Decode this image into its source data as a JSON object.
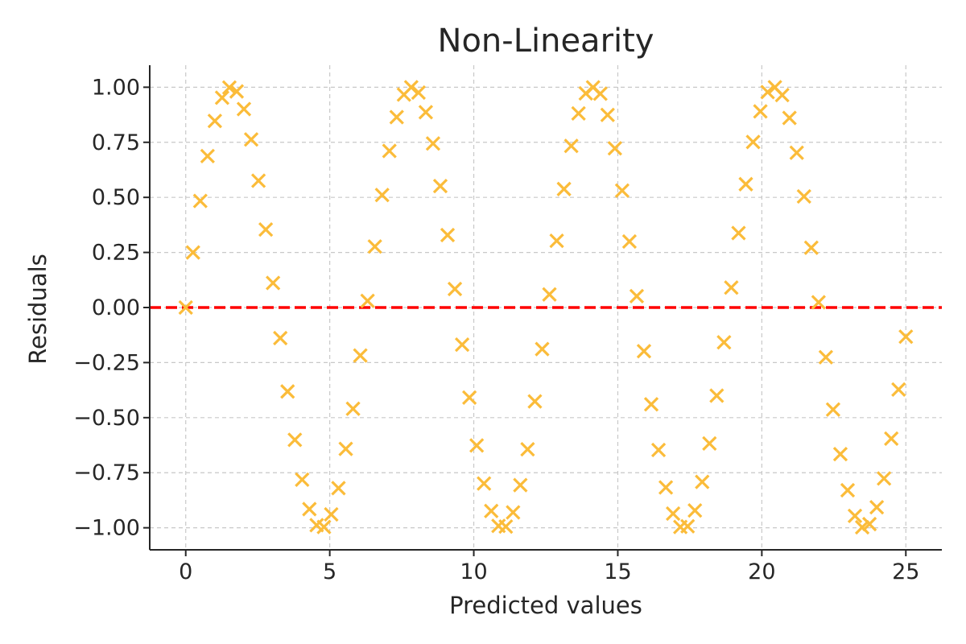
{
  "chart_data": {
    "type": "scatter",
    "title": "Non-Linearity",
    "xlabel": "Predicted values",
    "ylabel": "Residuals",
    "xlim": [
      -1.25,
      26.25
    ],
    "ylim": [
      -1.1,
      1.1
    ],
    "x_ticks": [
      0,
      5,
      10,
      15,
      20,
      25
    ],
    "x_tick_labels": [
      "0",
      "5",
      "10",
      "15",
      "20",
      "25"
    ],
    "y_ticks": [
      1.0,
      0.75,
      0.5,
      0.25,
      0.0,
      -0.25,
      -0.5,
      -0.75,
      -1.0
    ],
    "y_tick_labels": [
      "1.00",
      "0.75",
      "0.50",
      "0.25",
      "0.00",
      "−0.25",
      "−0.50",
      "−0.75",
      "−1.00"
    ],
    "grid": true,
    "reference_line": {
      "y": 0,
      "color": "#ff0000",
      "style": "dashed"
    },
    "marker": "x",
    "marker_color": "#fbbc3a",
    "series": [
      {
        "x": [
          0,
          0.2525,
          0.5051,
          0.7576,
          1.0101,
          1.2626,
          1.5152,
          1.7677,
          2.0202,
          2.2727,
          2.5253,
          2.7778,
          3.0303,
          3.2828,
          3.5354,
          3.7879,
          4.0404,
          4.2929,
          4.5455,
          4.798,
          5.0505,
          5.303,
          5.5556,
          5.8081,
          6.0606,
          6.3131,
          6.5657,
          6.8182,
          7.0707,
          7.3232,
          7.5758,
          7.8283,
          8.0808,
          8.3333,
          8.5859,
          8.8384,
          9.0909,
          9.3434,
          9.596,
          9.8485,
          10.101,
          10.3535,
          10.6061,
          10.8586,
          11.1111,
          11.3636,
          11.6162,
          11.8687,
          12.1212,
          12.3737,
          12.6263,
          12.8788,
          13.1313,
          13.3838,
          13.6364,
          13.8889,
          14.1414,
          14.3939,
          14.6465,
          14.899,
          15.1515,
          15.404,
          15.6566,
          15.9091,
          16.1616,
          16.4141,
          16.6667,
          16.9192,
          17.1717,
          17.4242,
          17.6768,
          17.9293,
          18.1818,
          18.4343,
          18.6869,
          18.9394,
          19.1919,
          19.4444,
          19.697,
          19.9495,
          20.202,
          20.4545,
          20.7071,
          20.9596,
          21.2121,
          21.4646,
          21.7172,
          21.9697,
          22.2222,
          22.4747,
          22.7273,
          22.9798,
          23.2323,
          23.4848,
          23.7374,
          23.9899,
          24.2424,
          24.4949,
          24.7475,
          25.0
        ],
        "y": [
          0.0,
          0.2498,
          0.4839,
          0.6873,
          0.8469,
          0.9526,
          0.9984,
          0.981,
          0.901,
          0.763,
          0.5756,
          0.3542,
          0.1114,
          -0.1388,
          -0.3812,
          -0.6006,
          -0.7815,
          -0.9152,
          -0.9879,
          -0.9961,
          -0.9391,
          -0.8198,
          -0.6418,
          -0.4597,
          -0.2178,
          0.0302,
          0.2767,
          0.5107,
          0.7108,
          0.8641,
          0.9665,
          0.9999,
          0.9759,
          0.8866,
          0.7445,
          0.5512,
          0.3287,
          0.0839,
          -0.1687,
          -0.4088,
          -0.6263,
          -0.7989,
          -0.9237,
          -0.9912,
          -0.9944,
          -0.9301,
          -0.8063,
          -0.6438,
          -0.4262,
          -0.1888,
          0.0594,
          0.3027,
          0.5379,
          0.7337,
          0.8811,
          0.9722,
          0.9996,
          0.9707,
          0.8743,
          0.7226,
          0.5309,
          0.2997,
          0.0518,
          -0.1982,
          -0.4396,
          -0.6467,
          -0.8168,
          -0.9357,
          -0.9964,
          -0.9931,
          -0.9212,
          -0.7918,
          -0.6172,
          -0.4001,
          -0.1581,
          0.0906,
          0.3382,
          0.5598,
          0.7514,
          0.8903,
          0.978,
          0.9999,
          0.9644,
          0.8608,
          0.7026,
          0.5045,
          0.2715,
          0.0236,
          -0.2257,
          -0.4634,
          -0.6656,
          -0.8295,
          -0.9459,
          -0.9975,
          -0.9833,
          -0.9069,
          -0.7763,
          -0.5953,
          -0.3723,
          -0.1324
        ]
      }
    ]
  }
}
